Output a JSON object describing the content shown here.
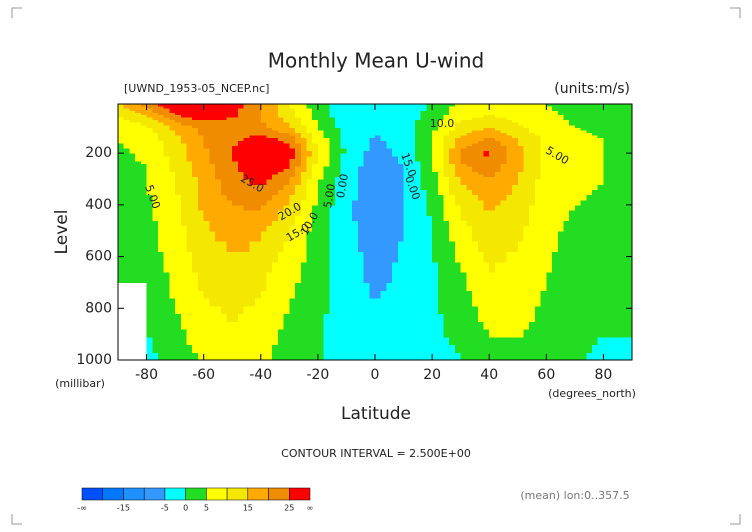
{
  "chart_data": {
    "type": "contour",
    "title": "Monthly Mean U-wind",
    "subtitle": "[UWND_1953-05_NCEP.nc]",
    "units": "(units:m/s)",
    "y_label": "Level",
    "y_units": "(millibar)",
    "x_label": "Latitude",
    "x_units": "(degrees_north)",
    "contour_interval": "CONTOUR INTERVAL = 2.500E+00",
    "footnote": "(mean) lon:0..357.5",
    "x": [
      -90,
      -80,
      -70,
      -60,
      -50,
      -40,
      -30,
      -20,
      -10,
      0,
      10,
      20,
      30,
      40,
      50,
      60,
      70,
      80,
      90
    ],
    "y": [
      1000,
      850,
      700,
      500,
      400,
      300,
      250,
      200,
      150,
      100,
      50,
      10
    ],
    "z": [
      [
        null,
        -2,
        3,
        5,
        7,
        6,
        3,
        1,
        -3,
        -3,
        -3,
        -2,
        0,
        3,
        4,
        3,
        1,
        -2,
        0
      ],
      [
        null,
        1,
        4,
        8,
        10,
        8,
        4,
        1,
        -3,
        -4,
        -3,
        -1,
        2,
        6,
        6,
        4,
        2,
        1,
        0
      ],
      [
        1,
        2,
        6,
        11,
        13,
        11,
        6,
        2,
        -3,
        -6,
        -4,
        -1,
        4,
        9,
        8,
        5,
        3,
        2,
        1
      ],
      [
        2,
        3,
        8,
        14,
        17,
        16,
        10,
        3,
        -4,
        -7,
        -5,
        0,
        8,
        13,
        11,
        6,
        4,
        3,
        2
      ],
      [
        3,
        4,
        9,
        16,
        20,
        21,
        14,
        4,
        -4,
        -8,
        -5,
        1,
        11,
        16,
        13,
        7,
        5,
        4,
        3
      ],
      [
        4,
        5,
        10,
        17,
        23,
        27,
        20,
        6,
        -3,
        -8,
        -5,
        3,
        16,
        20,
        15,
        8,
        6,
        5,
        3
      ],
      [
        4,
        5,
        11,
        18,
        24,
        30,
        25,
        8,
        -2,
        -8,
        -5,
        4,
        19,
        23,
        16,
        9,
        6,
        5,
        3
      ],
      [
        4,
        6,
        12,
        19,
        25,
        31,
        28,
        10,
        -1,
        -7,
        -4,
        5,
        21,
        26,
        17,
        9,
        6,
        5,
        4
      ],
      [
        5,
        7,
        13,
        20,
        24,
        28,
        24,
        8,
        -1,
        -6,
        -3,
        5,
        17,
        22,
        15,
        9,
        6,
        5,
        4
      ],
      [
        6,
        9,
        16,
        22,
        22,
        21,
        16,
        5,
        -2,
        -4,
        -2,
        4,
        12,
        15,
        11,
        7,
        5,
        4,
        3
      ],
      [
        10,
        16,
        25,
        28,
        26,
        20,
        12,
        3,
        -4,
        -4,
        -3,
        2,
        8,
        10,
        8,
        6,
        4,
        3,
        2
      ],
      [
        14,
        22,
        30,
        32,
        28,
        20,
        10,
        2,
        -4,
        -5,
        -4,
        1,
        6,
        8,
        7,
        5,
        3,
        2,
        1
      ]
    ],
    "xlim": [
      -90,
      90
    ],
    "ylim": [
      1000,
      10
    ],
    "xticks": [
      -80,
      -60,
      -40,
      -20,
      0,
      20,
      40,
      60,
      80
    ],
    "yticks": [
      200,
      400,
      600,
      800,
      1000
    ],
    "contour_labels": [
      {
        "value": 10,
        "label": "10.0"
      },
      {
        "value": 15,
        "label": "15.0"
      },
      {
        "value": 5,
        "label": "5.00"
      },
      {
        "value": 0,
        "label": "0.00"
      },
      {
        "value": 25,
        "label": "25.0"
      },
      {
        "value": 20,
        "label": "20.0"
      },
      {
        "value": 15,
        "label": "15.0"
      },
      {
        "value": 10,
        "label": "10.0"
      },
      {
        "value": 5,
        "label": "5.00"
      },
      {
        "value": 0,
        "label": "0.00"
      },
      {
        "value": 5,
        "label": "5.00"
      }
    ],
    "colorbar": {
      "bounds": [
        -20,
        -15,
        -10,
        -5,
        0,
        5,
        10,
        15,
        20,
        25
      ],
      "colors": [
        "#0050ff",
        "#0078ff",
        "#1e90ff",
        "#3399ff",
        "#00ffff",
        "#22dd22",
        "#ffff00",
        "#f5e800",
        "#ffaa00",
        "#f08c00",
        "#ff0000"
      ],
      "ticks": [
        -15,
        -5,
        0,
        5,
        15,
        25
      ],
      "low_label": "-∞",
      "high_label": "∞"
    }
  }
}
